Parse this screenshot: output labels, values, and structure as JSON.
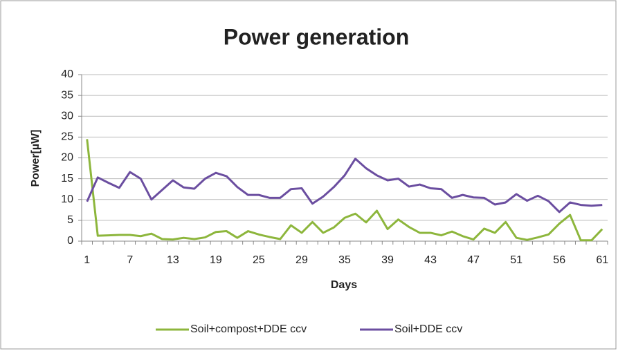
{
  "chart_data": {
    "type": "line",
    "title": "Power generation",
    "x_label": "Days",
    "y_label": "Power[µW]",
    "categories": [
      "1",
      null,
      null,
      null,
      "7",
      null,
      null,
      null,
      "13",
      null,
      null,
      null,
      "19",
      null,
      null,
      null,
      "25",
      null,
      null,
      null,
      "29",
      null,
      null,
      null,
      "35",
      null,
      null,
      null,
      "39",
      null,
      null,
      null,
      "43",
      null,
      null,
      null,
      "47",
      null,
      null,
      null,
      "51",
      null,
      null,
      null,
      "56",
      null,
      null,
      null,
      "61"
    ],
    "series": [
      {
        "name": "Soil+compost+DDE ccv",
        "color": "#8db63c",
        "values": [
          24.5,
          1.3,
          1.4,
          1.5,
          1.5,
          1.2,
          1.8,
          0.5,
          0.4,
          0.8,
          0.5,
          0.9,
          2.2,
          2.4,
          0.8,
          2.4,
          1.6,
          1,
          0.5,
          3.8,
          2,
          4.6,
          2,
          3.3,
          5.6,
          6.6,
          4.5,
          7.3,
          2.9,
          5.2,
          3.4,
          2,
          2,
          1.4,
          2.3,
          1.2,
          0.4,
          3,
          2,
          4.6,
          0.8,
          0.3,
          0.9,
          1.6,
          4.2,
          6.3,
          0.2,
          0.2,
          2.9
        ]
      },
      {
        "name": "Soil+DDE ccv",
        "color": "#6b4ea0",
        "values": [
          9.5,
          15.3,
          14,
          12.8,
          16.6,
          15,
          10,
          12.3,
          14.6,
          12.9,
          12.6,
          15,
          16.4,
          15.6,
          13,
          11.1,
          11.1,
          10.4,
          10.4,
          12.5,
          12.7,
          9,
          10.7,
          13,
          15.8,
          19.8,
          17.5,
          15.8,
          14.6,
          15,
          13.1,
          13.6,
          12.7,
          12.5,
          10.4,
          11.1,
          10.5,
          10.4,
          8.8,
          9.3,
          11.3,
          9.7,
          10.9,
          9.6,
          7,
          9.3,
          8.7,
          8.5,
          8.7
        ]
      }
    ],
    "ylim": [
      0,
      40
    ],
    "yticks": [
      0,
      5,
      10,
      15,
      20,
      25,
      30,
      35,
      40
    ],
    "grid": true,
    "legend": "bottom"
  }
}
